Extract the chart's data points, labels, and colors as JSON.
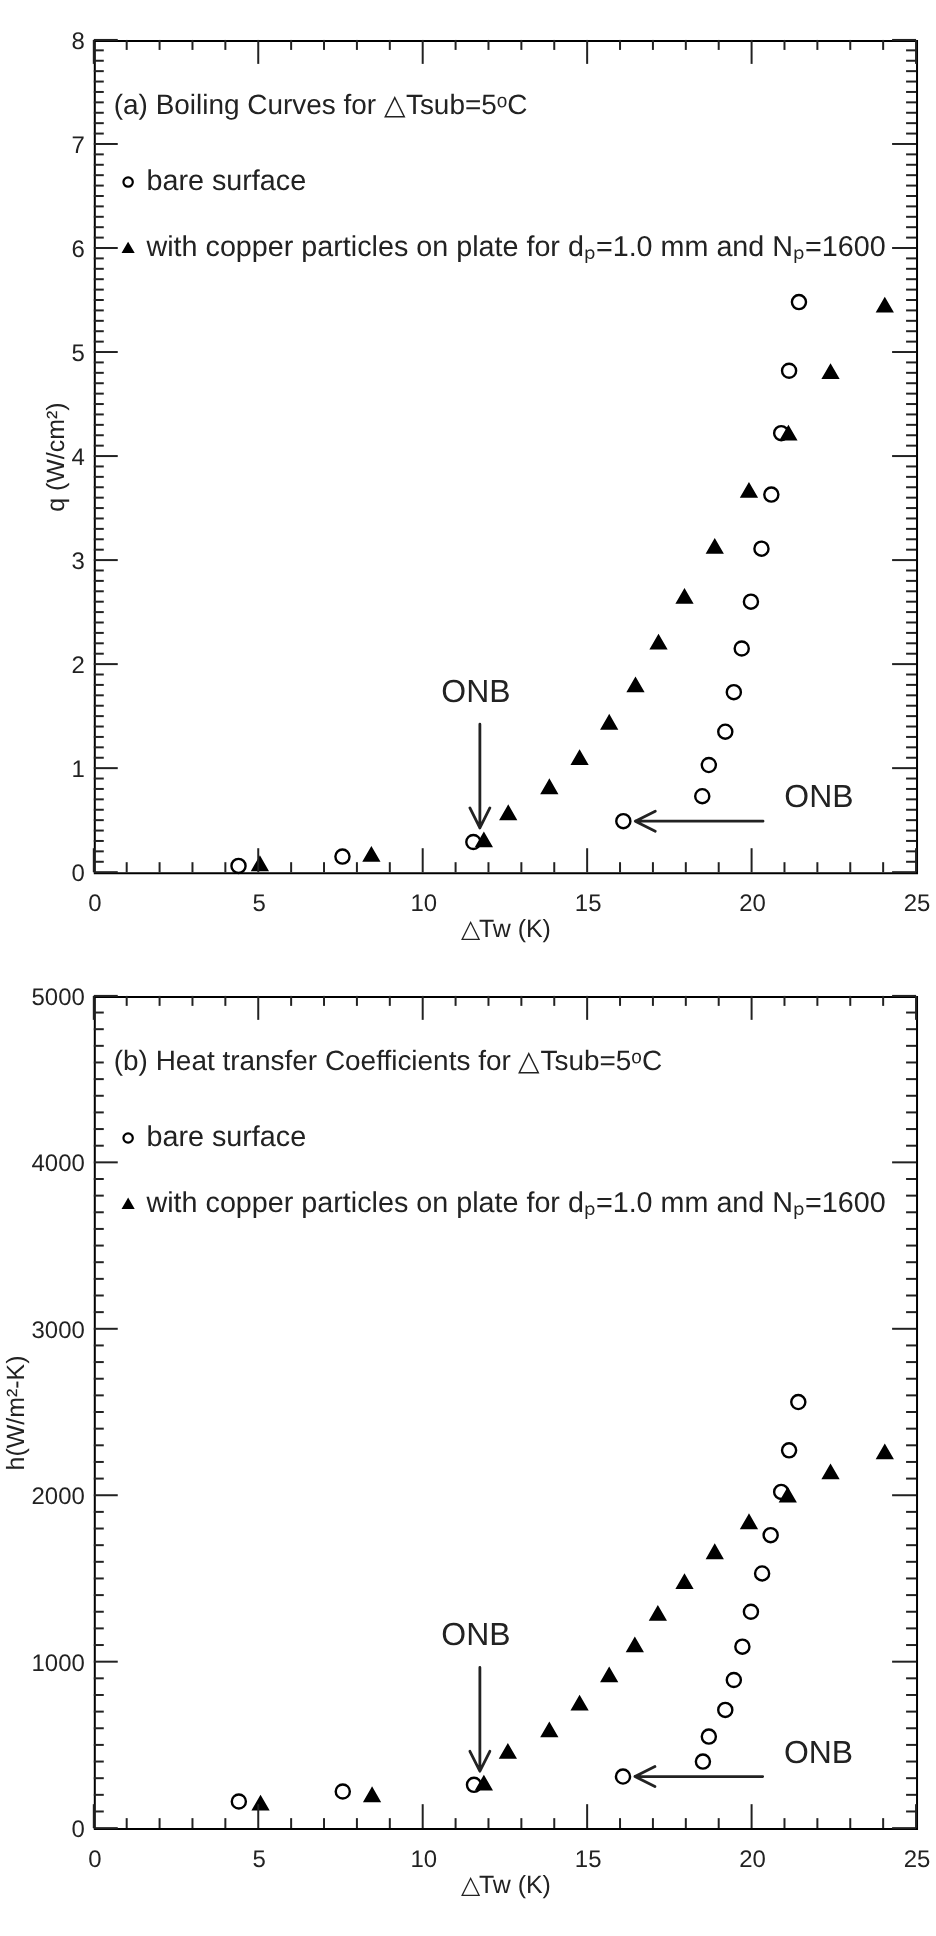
{
  "chart_data": [
    {
      "type": "scatter",
      "title": "(a) Boiling Curves for △Tsub=5ᵒC",
      "xlabel": "△Tw (K)",
      "ylabel": "q (W/cm²)",
      "xlim": [
        0,
        25
      ],
      "xticks": [
        0,
        {
          "value": 1,
          "label": null
        },
        {
          "value": 2,
          "label": null
        },
        {
          "value": 3,
          "label": null
        },
        {
          "value": 4,
          "label": null
        },
        5,
        {
          "value": 6,
          "label": null
        },
        {
          "value": 7,
          "label": null
        },
        {
          "value": 8,
          "label": null
        },
        {
          "value": 9,
          "label": null
        },
        10,
        {
          "value": 11,
          "label": null
        },
        {
          "value": 12,
          "label": null
        },
        {
          "value": 13,
          "label": null
        },
        {
          "value": 14,
          "label": null
        },
        15,
        {
          "value": 16,
          "label": null
        },
        {
          "value": 17,
          "label": null
        },
        {
          "value": 18,
          "label": null
        },
        {
          "value": 19,
          "label": null
        },
        20,
        {
          "value": 21,
          "label": null
        },
        {
          "value": 22,
          "label": null
        },
        {
          "value": 23,
          "label": null
        },
        {
          "value": 24,
          "label": null
        },
        25
      ],
      "ylim": [
        0,
        8
      ],
      "yticks": [
        0,
        {
          "value": 0.1,
          "label": null
        },
        {
          "value": 0.2,
          "label": null
        },
        {
          "value": 0.3,
          "label": null
        },
        {
          "value": 0.4,
          "label": null
        },
        {
          "value": 0.5,
          "label": null
        },
        {
          "value": 0.6,
          "label": null
        },
        {
          "value": 0.7,
          "label": null
        },
        {
          "value": 0.8,
          "label": null
        },
        {
          "value": 0.9,
          "label": null
        },
        1,
        {
          "value": 1.1,
          "label": null
        },
        {
          "value": 1.2,
          "label": null
        },
        {
          "value": 1.3,
          "label": null
        },
        {
          "value": 1.4,
          "label": null
        },
        {
          "value": 1.5,
          "label": null
        },
        {
          "value": 1.6,
          "label": null
        },
        {
          "value": 1.7,
          "label": null
        },
        {
          "value": 1.8,
          "label": null
        },
        {
          "value": 1.9,
          "label": null
        },
        2,
        {
          "value": 2.1,
          "label": null
        },
        {
          "value": 2.2,
          "label": null
        },
        {
          "value": 2.3,
          "label": null
        },
        {
          "value": 2.4,
          "label": null
        },
        {
          "value": 2.5,
          "label": null
        },
        {
          "value": 2.6,
          "label": null
        },
        {
          "value": 2.7,
          "label": null
        },
        {
          "value": 2.8,
          "label": null
        },
        {
          "value": 2.9,
          "label": null
        },
        3,
        {
          "value": 3.1,
          "label": null
        },
        {
          "value": 3.2,
          "label": null
        },
        {
          "value": 3.3,
          "label": null
        },
        {
          "value": 3.4,
          "label": null
        },
        {
          "value": 3.5,
          "label": null
        },
        {
          "value": 3.6,
          "label": null
        },
        {
          "value": 3.7,
          "label": null
        },
        {
          "value": 3.8,
          "label": null
        },
        {
          "value": 3.9,
          "label": null
        },
        4,
        {
          "value": 4.1,
          "label": null
        },
        {
          "value": 4.2,
          "label": null
        },
        {
          "value": 4.3,
          "label": null
        },
        {
          "value": 4.4,
          "label": null
        },
        {
          "value": 4.5,
          "label": null
        },
        {
          "value": 4.6,
          "label": null
        },
        {
          "value": 4.7,
          "label": null
        },
        {
          "value": 4.8,
          "label": null
        },
        {
          "value": 4.9,
          "label": null
        },
        5,
        {
          "value": 5.1,
          "label": null
        },
        {
          "value": 5.2,
          "label": null
        },
        {
          "value": 5.3,
          "label": null
        },
        {
          "value": 5.4,
          "label": null
        },
        {
          "value": 5.5,
          "label": null
        },
        {
          "value": 5.6,
          "label": null
        },
        {
          "value": 5.7,
          "label": null
        },
        {
          "value": 5.8,
          "label": null
        },
        {
          "value": 5.9,
          "label": null
        },
        6,
        {
          "value": 6.1,
          "label": null
        },
        {
          "value": 6.2,
          "label": null
        },
        {
          "value": 6.3,
          "label": null
        },
        {
          "value": 6.4,
          "label": null
        },
        {
          "value": 6.5,
          "label": null
        },
        {
          "value": 6.6,
          "label": null
        },
        {
          "value": 6.7,
          "label": null
        },
        {
          "value": 6.8,
          "label": null
        },
        {
          "value": 6.9,
          "label": null
        },
        7,
        {
          "value": 7.1,
          "label": null
        },
        {
          "value": 7.2,
          "label": null
        },
        {
          "value": 7.3,
          "label": null
        },
        {
          "value": 7.4,
          "label": null
        },
        {
          "value": 7.5,
          "label": null
        },
        {
          "value": 7.6,
          "label": null
        },
        {
          "value": 7.7,
          "label": null
        },
        {
          "value": 7.8,
          "label": null
        },
        {
          "value": 7.9,
          "label": null
        },
        8
      ],
      "legend": "top left",
      "series": [
        {
          "name": "bare surface",
          "color": "#000000",
          "marker": "circle",
          "x": [
            4.4,
            7.56,
            11.54,
            16.1,
            18.5,
            18.7,
            19.2,
            19.46,
            19.7,
            19.98,
            20.3,
            20.6,
            20.9,
            21.14,
            21.44
          ],
          "values": [
            0.06,
            0.15,
            0.29,
            0.49,
            0.73,
            1.03,
            1.35,
            1.73,
            2.15,
            2.6,
            3.11,
            3.63,
            4.22,
            4.82,
            5.48
          ]
        },
        {
          "name": "with copper particles on plate for dₚ=1.0 mm and Nₚ=1600",
          "color": "#000000",
          "marker": "triangle",
          "x": [
            5.05,
            8.44,
            11.86,
            12.6,
            13.85,
            14.77,
            15.67,
            16.47,
            17.17,
            17.96,
            18.88,
            19.92,
            21.12,
            22.4,
            24.05
          ],
          "values": [
            0.08,
            0.17,
            0.31,
            0.57,
            0.82,
            1.1,
            1.44,
            1.8,
            2.21,
            2.65,
            3.13,
            3.67,
            4.22,
            4.81,
            5.45
          ]
        }
      ],
      "annotations": [
        {
          "text": "ONB",
          "x": 11.86,
          "y": 0.31
        },
        {
          "text": "ONB",
          "x": 16.1,
          "y": 0.49
        }
      ]
    },
    {
      "type": "scatter",
      "title": "(b) Heat transfer Coefficients for △Tsub=5ᵒC",
      "xlabel": "△Tw (K)",
      "ylabel": "h(W/m²-K)",
      "xlim": [
        0,
        25
      ],
      "xticks": [
        0,
        {
          "value": 1,
          "label": null
        },
        {
          "value": 2,
          "label": null
        },
        {
          "value": 3,
          "label": null
        },
        {
          "value": 4,
          "label": null
        },
        5,
        {
          "value": 6,
          "label": null
        },
        {
          "value": 7,
          "label": null
        },
        {
          "value": 8,
          "label": null
        },
        {
          "value": 9,
          "label": null
        },
        10,
        {
          "value": 11,
          "label": null
        },
        {
          "value": 12,
          "label": null
        },
        {
          "value": 13,
          "label": null
        },
        {
          "value": 14,
          "label": null
        },
        15,
        {
          "value": 16,
          "label": null
        },
        {
          "value": 17,
          "label": null
        },
        {
          "value": 18,
          "label": null
        },
        {
          "value": 19,
          "label": null
        },
        20,
        {
          "value": 21,
          "label": null
        },
        {
          "value": 22,
          "label": null
        },
        {
          "value": 23,
          "label": null
        },
        {
          "value": 24,
          "label": null
        },
        25
      ],
      "ylim": [
        0,
        5000
      ],
      "yticks": [
        0,
        {
          "value": 100,
          "label": null
        },
        {
          "value": 200,
          "label": null
        },
        {
          "value": 300,
          "label": null
        },
        {
          "value": 400,
          "label": null
        },
        {
          "value": 500,
          "label": null
        },
        {
          "value": 600,
          "label": null
        },
        {
          "value": 700,
          "label": null
        },
        {
          "value": 800,
          "label": null
        },
        {
          "value": 900,
          "label": null
        },
        1000,
        {
          "value": 1100,
          "label": null
        },
        {
          "value": 1200,
          "label": null
        },
        {
          "value": 1300,
          "label": null
        },
        {
          "value": 1400,
          "label": null
        },
        {
          "value": 1500,
          "label": null
        },
        {
          "value": 1600,
          "label": null
        },
        {
          "value": 1700,
          "label": null
        },
        {
          "value": 1800,
          "label": null
        },
        {
          "value": 1900,
          "label": null
        },
        2000,
        {
          "value": 2100,
          "label": null
        },
        {
          "value": 2200,
          "label": null
        },
        {
          "value": 2300,
          "label": null
        },
        {
          "value": 2400,
          "label": null
        },
        {
          "value": 2500,
          "label": null
        },
        {
          "value": 2600,
          "label": null
        },
        {
          "value": 2700,
          "label": null
        },
        {
          "value": 2800,
          "label": null
        },
        {
          "value": 2900,
          "label": null
        },
        3000,
        {
          "value": 3100,
          "label": null
        },
        {
          "value": 3200,
          "label": null
        },
        {
          "value": 3300,
          "label": null
        },
        {
          "value": 3400,
          "label": null
        },
        {
          "value": 3500,
          "label": null
        },
        {
          "value": 3600,
          "label": null
        },
        {
          "value": 3700,
          "label": null
        },
        {
          "value": 3800,
          "label": null
        },
        {
          "value": 3900,
          "label": null
        },
        4000,
        {
          "value": 4100,
          "label": null
        },
        {
          "value": 4200,
          "label": null
        },
        {
          "value": 4300,
          "label": null
        },
        {
          "value": 4400,
          "label": null
        },
        {
          "value": 4500,
          "label": null
        },
        {
          "value": 4600,
          "label": null
        },
        {
          "value": 4700,
          "label": null
        },
        {
          "value": 4800,
          "label": null
        },
        {
          "value": 4900,
          "label": null
        },
        5000
      ],
      "legend": "top left",
      "series": [
        {
          "name": "bare surface",
          "color": "#000000",
          "marker": "circle",
          "x": [
            4.41,
            7.57,
            11.56,
            16.09,
            18.52,
            18.7,
            19.2,
            19.46,
            19.72,
            19.98,
            20.32,
            20.58,
            20.9,
            21.14,
            21.42
          ],
          "values": [
            160,
            220,
            260,
            310,
            400,
            550,
            710,
            890,
            1090,
            1300,
            1530,
            1760,
            2020,
            2270,
            2560
          ]
        },
        {
          "name": "with copper particles on plate for dₚ=1.0 mm and Nₚ=1600",
          "color": "#000000",
          "marker": "triangle",
          "x": [
            5.07,
            8.46,
            11.86,
            12.59,
            13.85,
            14.77,
            15.67,
            16.45,
            17.15,
            17.96,
            18.88,
            19.92,
            21.1,
            22.4,
            24.05
          ],
          "values": [
            150,
            200,
            270,
            460,
            590,
            750,
            920,
            1100,
            1290,
            1480,
            1660,
            1840,
            2000,
            2140,
            2260
          ]
        }
      ],
      "annotations": [
        {
          "text": "ONB",
          "x": 11.86,
          "y": 270
        },
        {
          "text": "ONB",
          "x": 16.09,
          "y": 310
        }
      ]
    }
  ]
}
